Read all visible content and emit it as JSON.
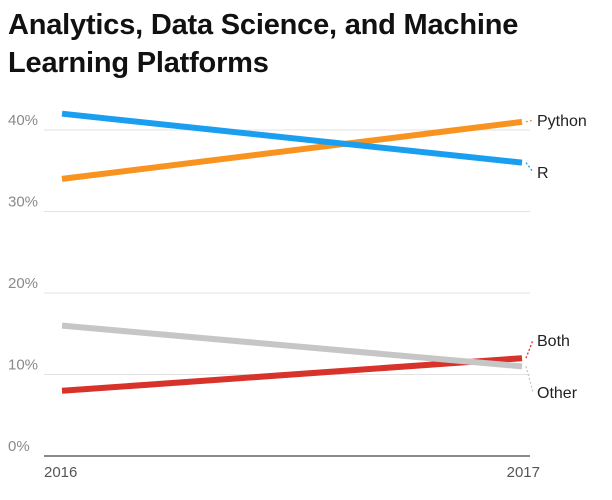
{
  "chart_data": {
    "type": "line",
    "title": "Analytics, Data Science, and Machine Learning Platforms",
    "xlabel": "",
    "ylabel": "",
    "x": [
      "2016",
      "2017"
    ],
    "ylim": [
      0,
      45
    ],
    "yticks": [
      0,
      10,
      20,
      30,
      40
    ],
    "ytick_labels": [
      "0%",
      "10%",
      "20%",
      "30%",
      "40%"
    ],
    "grid": true,
    "legend": "direct-labels-right",
    "series": [
      {
        "name": "Python",
        "values": [
          34,
          41
        ],
        "color": "#F7931E"
      },
      {
        "name": "R",
        "values": [
          42,
          36
        ],
        "color": "#1A9FF0"
      },
      {
        "name": "Both",
        "values": [
          8,
          12
        ],
        "color": "#D7332A"
      },
      {
        "name": "Other",
        "values": [
          16,
          11
        ],
        "color": "#C6C6C6"
      }
    ]
  }
}
